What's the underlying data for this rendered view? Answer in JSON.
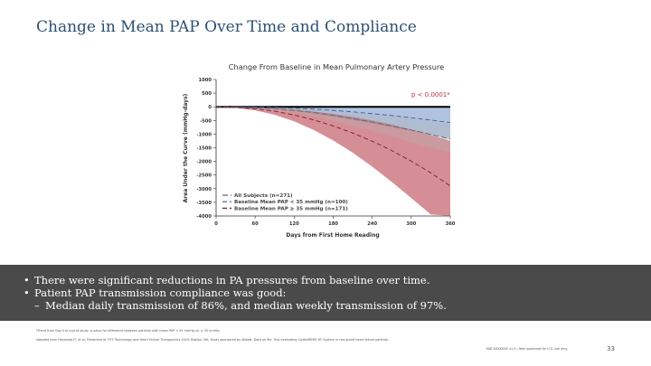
{
  "slide": {
    "title": "Change in Mean PAP Over Time and Compliance",
    "page_number": "33"
  },
  "bullets": [
    {
      "marker": "•",
      "text": "There were significant reductions in PA pressures from baseline over time."
    },
    {
      "marker": "•",
      "text": "Patient PAP transmission compliance was good:"
    },
    {
      "marker": "–",
      "text": "Median daily transmission of 86%, and median weekly transmission of 97%.",
      "level": 2
    }
  ],
  "footnotes": {
    "note": "*Trend from Day 0 to end of study, p-value for difference between patients with mean PAP < 35 mmHg vs. ≥ 35 mmHg",
    "references": "Adapted from Heywood JT, et al. Presented at THT: Technology and Heart Failure Therapeutics 2019; Boston, MA. Study sponsored by Abbott. Data on file. Trial evaluating CardioMEMS HF System in real-world heart failure patients.",
    "legal": "MAT-XXXXXXX v1.0 | Item approved for U.S. use only."
  },
  "colors": {
    "title": "#2e4f73",
    "all_subjects": "#b3b3b3",
    "low_pap": "#6f8fc6",
    "high_pap": "#b5323f",
    "band": "#4a4a4a"
  },
  "chart_data": {
    "type": "line",
    "title": "Change From Baseline in Mean Pulmonary Artery Pressure",
    "xlabel": "Days from First Home Reading",
    "ylabel": "Area Under the Curve (mmHg-days)",
    "xlim": [
      0,
      360
    ],
    "ylim": [
      -4000,
      1000
    ],
    "xticks": [
      0,
      60,
      120,
      180,
      240,
      300,
      360
    ],
    "yticks": [
      1000,
      500,
      0,
      -500,
      -1000,
      -1500,
      -2000,
      -2500,
      -3000,
      -3500,
      -4000
    ],
    "grid": false,
    "legend_position": "bottom-left",
    "annotation": "p < 0.0001*",
    "x": [
      0,
      30,
      60,
      90,
      120,
      150,
      180,
      210,
      240,
      270,
      300,
      330,
      360
    ],
    "series": [
      {
        "name": "All Subjects (n=271)",
        "color": "#b3b3b3",
        "values": [
          0,
          -10,
          -30,
          -70,
          -130,
          -210,
          -310,
          -430,
          -560,
          -700,
          -850,
          -1010,
          -1180
        ],
        "lower": [
          0,
          -20,
          -60,
          -130,
          -230,
          -360,
          -520,
          -700,
          -890,
          -1090,
          -1290,
          -1490,
          -1700
        ],
        "upper": [
          0,
          0,
          0,
          -10,
          -40,
          -80,
          -130,
          -190,
          -260,
          -340,
          -430,
          -530,
          -640
        ]
      },
      {
        "name": "Baseline Mean PAP < 35 mmHg (n=100)",
        "color": "#6f8fc6",
        "values": [
          0,
          -3,
          -10,
          -25,
          -50,
          -85,
          -130,
          -185,
          -250,
          -320,
          -400,
          -485,
          -580
        ],
        "lower": [
          0,
          -10,
          -35,
          -80,
          -150,
          -240,
          -350,
          -470,
          -600,
          -740,
          -880,
          -1020,
          -1170
        ],
        "upper": [
          0,
          0,
          0,
          0,
          0,
          0,
          0,
          0,
          0,
          0,
          0,
          0,
          0
        ]
      },
      {
        "name": "Baseline Mean PAP ≥ 35 mmHg (n=171)",
        "color": "#b5323f",
        "values": [
          0,
          -20,
          -70,
          -160,
          -300,
          -480,
          -700,
          -960,
          -1260,
          -1600,
          -1990,
          -2420,
          -2900
        ],
        "lower": [
          0,
          -40,
          -130,
          -290,
          -530,
          -850,
          -1230,
          -1680,
          -2190,
          -2750,
          -3340,
          -3940,
          -4000
        ],
        "upper": [
          0,
          -5,
          -20,
          -50,
          -100,
          -170,
          -260,
          -370,
          -500,
          -650,
          -830,
          -1030,
          -1250
        ]
      }
    ]
  }
}
